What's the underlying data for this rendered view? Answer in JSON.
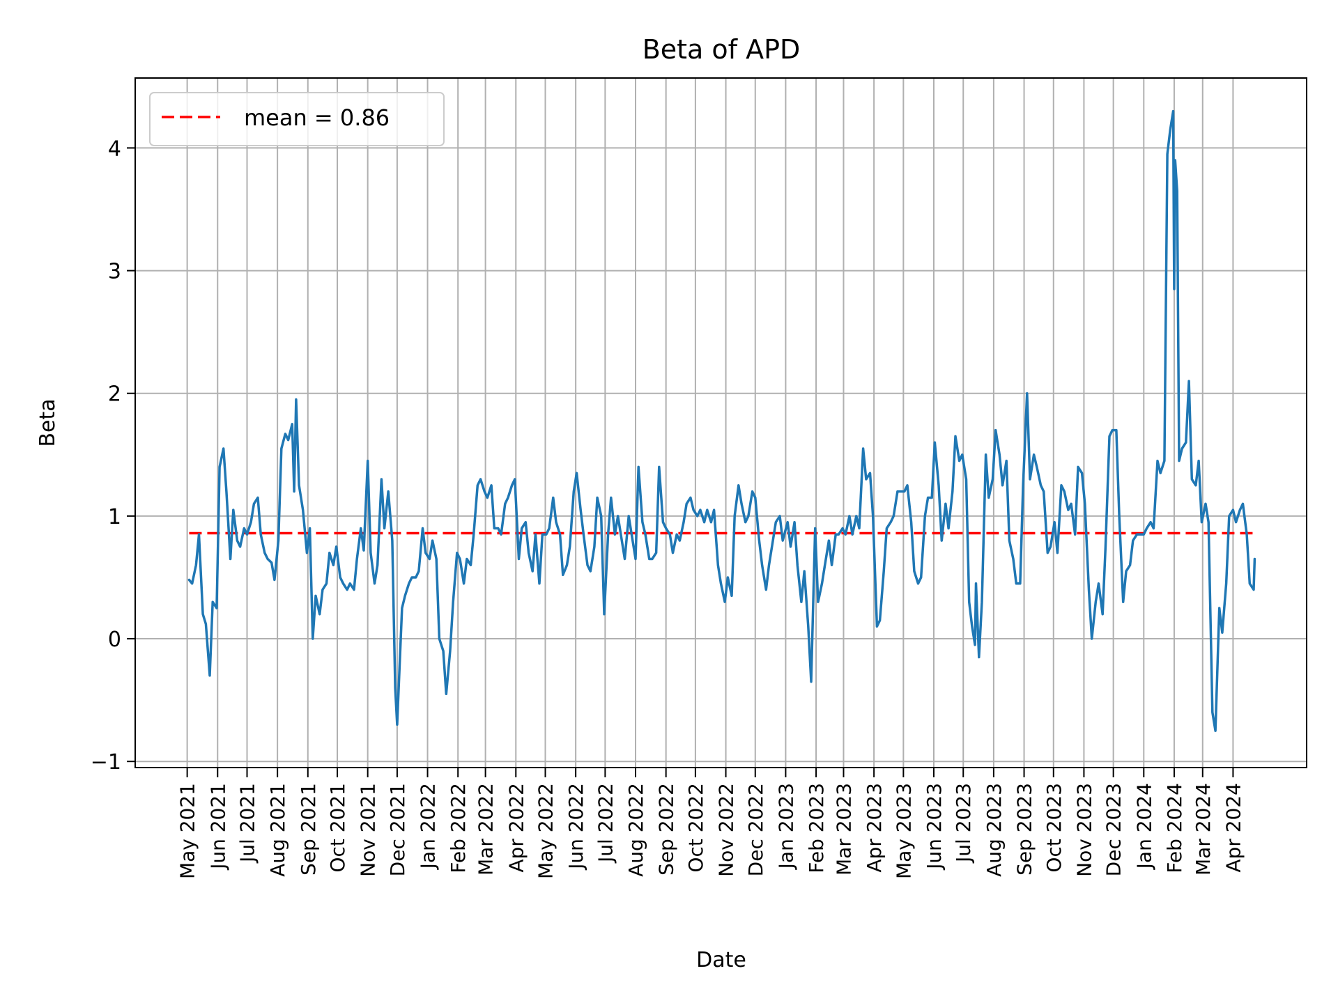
{
  "chart_data": {
    "type": "line",
    "title": "Beta of APD",
    "xlabel": "Date",
    "ylabel": "Beta",
    "xlim": [
      "2021-03-09",
      "2024-06-15"
    ],
    "ylim": [
      -1.05,
      4.57
    ],
    "grid": true,
    "legend_position": "top-left",
    "yticks": [
      -1,
      0,
      1,
      2,
      3,
      4
    ],
    "ytick_labels": [
      "−1",
      "0",
      "1",
      "2",
      "3",
      "4"
    ],
    "xticks": [
      "2021-05-01",
      "2021-06-01",
      "2021-07-01",
      "2021-08-01",
      "2021-09-01",
      "2021-10-01",
      "2021-11-01",
      "2021-12-01",
      "2022-01-01",
      "2022-02-01",
      "2022-03-01",
      "2022-04-01",
      "2022-05-01",
      "2022-06-01",
      "2022-07-01",
      "2022-08-01",
      "2022-09-01",
      "2022-10-01",
      "2022-11-01",
      "2022-12-01",
      "2023-01-01",
      "2023-02-01",
      "2023-03-01",
      "2023-04-01",
      "2023-05-01",
      "2023-06-01",
      "2023-07-01",
      "2023-08-01",
      "2023-09-01",
      "2023-10-01",
      "2023-11-01",
      "2023-12-01",
      "2024-01-01",
      "2024-02-01",
      "2024-03-01",
      "2024-04-01"
    ],
    "xtick_labels": [
      "May 2021",
      "Jun 2021",
      "Jul 2021",
      "Aug 2021",
      "Sep 2021",
      "Oct 2021",
      "Nov 2021",
      "Dec 2021",
      "Jan 2022",
      "Feb 2022",
      "Mar 2022",
      "Apr 2022",
      "May 2022",
      "Jun 2022",
      "Jul 2022",
      "Aug 2022",
      "Sep 2022",
      "Oct 2022",
      "Nov 2022",
      "Dec 2022",
      "Jan 2023",
      "Feb 2023",
      "Mar 2023",
      "Apr 2023",
      "May 2023",
      "Jun 2023",
      "Jul 2023",
      "Aug 2023",
      "Sep 2023",
      "Oct 2023",
      "Nov 2023",
      "Dec 2023",
      "Jan 2024",
      "Feb 2024",
      "Mar 2024",
      "Apr 2024"
    ],
    "colors": {
      "series": "#1f77b4",
      "mean": "#ff0000",
      "grid": "#b0b0b0"
    },
    "mean_line": {
      "label": "mean = 0.86",
      "value": 0.86,
      "style": "dashed"
    },
    "series": [
      {
        "x": [
          "2021-05-03",
          "2021-05-06",
          "2021-05-10",
          "2021-05-13",
          "2021-05-17",
          "2021-05-20",
          "2021-05-24",
          "2021-05-27",
          "2021-05-31",
          "2021-06-03",
          "2021-06-07",
          "2021-06-10",
          "2021-06-14",
          "2021-06-17",
          "2021-06-21",
          "2021-06-24",
          "2021-06-28",
          "2021-07-01",
          "2021-07-05",
          "2021-07-08",
          "2021-07-12",
          "2021-07-15",
          "2021-07-19",
          "2021-07-22",
          "2021-07-26",
          "2021-07-29",
          "2021-08-02",
          "2021-08-05",
          "2021-08-09",
          "2021-08-12",
          "2021-08-16",
          "2021-08-18",
          "2021-08-20",
          "2021-08-23",
          "2021-08-27",
          "2021-08-31",
          "2021-09-03",
          "2021-09-06",
          "2021-09-09",
          "2021-09-13",
          "2021-09-16",
          "2021-09-20",
          "2021-09-23",
          "2021-09-27",
          "2021-09-30",
          "2021-10-04",
          "2021-10-07",
          "2021-10-11",
          "2021-10-14",
          "2021-10-18",
          "2021-10-21",
          "2021-10-25",
          "2021-10-28",
          "2021-11-01",
          "2021-11-04",
          "2021-11-08",
          "2021-11-11",
          "2021-11-15",
          "2021-11-18",
          "2021-11-22",
          "2021-11-26",
          "2021-11-29",
          "2021-12-01",
          "2021-12-06",
          "2021-12-09",
          "2021-12-13",
          "2021-12-16",
          "2021-12-20",
          "2021-12-23",
          "2021-12-27",
          "2021-12-30",
          "2022-01-03",
          "2022-01-06",
          "2022-01-10",
          "2022-01-13",
          "2022-01-17",
          "2022-01-20",
          "2022-01-24",
          "2022-01-27",
          "2022-01-31",
          "2022-02-03",
          "2022-02-07",
          "2022-02-10",
          "2022-02-14",
          "2022-02-17",
          "2022-02-21",
          "2022-02-24",
          "2022-02-28",
          "2022-03-03",
          "2022-03-07",
          "2022-03-10",
          "2022-03-14",
          "2022-03-17",
          "2022-03-21",
          "2022-03-24",
          "2022-03-28",
          "2022-03-31",
          "2022-04-04",
          "2022-04-07",
          "2022-04-11",
          "2022-04-14",
          "2022-04-18",
          "2022-04-21",
          "2022-04-25",
          "2022-04-28",
          "2022-05-02",
          "2022-05-05",
          "2022-05-09",
          "2022-05-12",
          "2022-05-16",
          "2022-05-19",
          "2022-05-23",
          "2022-05-26",
          "2022-05-30",
          "2022-06-02",
          "2022-06-06",
          "2022-06-09",
          "2022-06-13",
          "2022-06-16",
          "2022-06-20",
          "2022-06-23",
          "2022-06-27",
          "2022-06-30",
          "2022-07-04",
          "2022-07-07",
          "2022-07-11",
          "2022-07-14",
          "2022-07-18",
          "2022-07-21",
          "2022-07-25",
          "2022-07-28",
          "2022-08-01",
          "2022-08-04",
          "2022-08-08",
          "2022-08-11",
          "2022-08-15",
          "2022-08-18",
          "2022-08-22",
          "2022-08-25",
          "2022-08-29",
          "2022-09-01",
          "2022-09-05",
          "2022-09-08",
          "2022-09-12",
          "2022-09-15",
          "2022-09-19",
          "2022-09-22",
          "2022-09-26",
          "2022-09-29",
          "2022-10-03",
          "2022-10-06",
          "2022-10-10",
          "2022-10-13",
          "2022-10-17",
          "2022-10-20",
          "2022-10-24",
          "2022-10-27",
          "2022-10-31",
          "2022-11-03",
          "2022-11-07",
          "2022-11-10",
          "2022-11-14",
          "2022-11-17",
          "2022-11-21",
          "2022-11-24",
          "2022-11-28",
          "2022-12-01",
          "2022-12-05",
          "2022-12-08",
          "2022-12-12",
          "2022-12-15",
          "2022-12-19",
          "2022-12-22",
          "2022-12-26",
          "2022-12-29",
          "2023-01-03",
          "2023-01-06",
          "2023-01-10",
          "2023-01-13",
          "2023-01-17",
          "2023-01-20",
          "2023-01-24",
          "2023-01-27",
          "2023-01-31",
          "2023-02-03",
          "2023-02-07",
          "2023-02-10",
          "2023-02-14",
          "2023-02-17",
          "2023-02-21",
          "2023-02-24",
          "2023-02-28",
          "2023-03-03",
          "2023-03-07",
          "2023-03-10",
          "2023-03-14",
          "2023-03-17",
          "2023-03-21",
          "2023-03-24",
          "2023-03-28",
          "2023-03-31",
          "2023-04-04",
          "2023-04-07",
          "2023-04-11",
          "2023-04-14",
          "2023-04-18",
          "2023-04-21",
          "2023-04-25",
          "2023-04-28",
          "2023-05-02",
          "2023-05-05",
          "2023-05-09",
          "2023-05-12",
          "2023-05-16",
          "2023-05-19",
          "2023-05-23",
          "2023-05-26",
          "2023-05-30",
          "2023-06-02",
          "2023-06-06",
          "2023-06-09",
          "2023-06-13",
          "2023-06-16",
          "2023-06-20",
          "2023-06-23",
          "2023-06-27",
          "2023-06-30",
          "2023-07-04",
          "2023-07-07",
          "2023-07-10",
          "2023-07-13",
          "2023-07-14",
          "2023-07-17",
          "2023-07-20",
          "2023-07-24",
          "2023-07-27",
          "2023-07-31",
          "2023-08-03",
          "2023-08-07",
          "2023-08-10",
          "2023-08-14",
          "2023-08-17",
          "2023-08-21",
          "2023-08-24",
          "2023-08-28",
          "2023-08-31",
          "2023-09-04",
          "2023-09-07",
          "2023-09-11",
          "2023-09-14",
          "2023-09-18",
          "2023-09-21",
          "2023-09-25",
          "2023-09-28",
          "2023-10-02",
          "2023-10-05",
          "2023-10-09",
          "2023-10-12",
          "2023-10-16",
          "2023-10-19",
          "2023-10-23",
          "2023-10-26",
          "2023-10-30",
          "2023-11-02",
          "2023-11-06",
          "2023-11-09",
          "2023-11-13",
          "2023-11-16",
          "2023-11-20",
          "2023-11-23",
          "2023-11-27",
          "2023-11-30",
          "2023-12-04",
          "2023-12-07",
          "2023-12-11",
          "2023-12-14",
          "2023-12-18",
          "2023-12-21",
          "2023-12-25",
          "2023-12-28",
          "2024-01-01",
          "2024-01-04",
          "2024-01-08",
          "2024-01-11",
          "2024-01-15",
          "2024-01-18",
          "2024-01-22",
          "2024-01-25",
          "2024-01-28",
          "2024-01-31",
          "2024-02-01",
          "2024-02-02",
          "2024-02-04",
          "2024-02-06",
          "2024-02-09",
          "2024-02-13",
          "2024-02-16",
          "2024-02-19",
          "2024-02-23",
          "2024-02-26",
          "2024-02-29",
          "2024-03-04",
          "2024-03-07",
          "2024-03-11",
          "2024-03-14",
          "2024-03-18",
          "2024-03-21",
          "2024-03-25",
          "2024-03-28",
          "2024-04-01",
          "2024-04-04",
          "2024-04-08",
          "2024-04-11",
          "2024-04-15",
          "2024-04-18",
          "2024-04-22",
          "2024-04-23"
        ],
        "y": [
          0.48,
          0.45,
          0.6,
          0.85,
          0.2,
          0.12,
          -0.3,
          0.3,
          0.25,
          1.4,
          1.55,
          1.2,
          0.65,
          1.05,
          0.8,
          0.75,
          0.9,
          0.85,
          0.95,
          1.1,
          1.15,
          0.85,
          0.7,
          0.65,
          0.62,
          0.48,
          0.8,
          1.55,
          1.67,
          1.62,
          1.75,
          1.2,
          1.95,
          1.25,
          1.05,
          0.7,
          0.9,
          0.0,
          0.35,
          0.2,
          0.4,
          0.45,
          0.7,
          0.6,
          0.75,
          0.5,
          0.45,
          0.4,
          0.45,
          0.4,
          0.65,
          0.9,
          0.72,
          1.45,
          0.7,
          0.45,
          0.6,
          1.3,
          0.9,
          1.2,
          0.8,
          -0.4,
          -0.7,
          0.25,
          0.35,
          0.45,
          0.5,
          0.5,
          0.55,
          0.9,
          0.7,
          0.65,
          0.8,
          0.65,
          0.0,
          -0.1,
          -0.45,
          -0.1,
          0.3,
          0.7,
          0.65,
          0.45,
          0.65,
          0.6,
          0.85,
          1.25,
          1.3,
          1.2,
          1.15,
          1.25,
          0.9,
          0.9,
          0.85,
          1.1,
          1.15,
          1.25,
          1.3,
          0.65,
          0.9,
          0.95,
          0.7,
          0.55,
          0.85,
          0.45,
          0.85,
          0.85,
          0.9,
          1.15,
          0.95,
          0.85,
          0.52,
          0.6,
          0.75,
          1.2,
          1.35,
          1.05,
          0.85,
          0.6,
          0.55,
          0.75,
          1.15,
          1.0,
          0.2,
          0.85,
          1.15,
          0.85,
          1.0,
          0.8,
          0.65,
          1.0,
          0.85,
          0.65,
          1.4,
          0.95,
          0.85,
          0.65,
          0.65,
          0.7,
          1.4,
          0.95,
          0.9,
          0.85,
          0.7,
          0.85,
          0.8,
          0.95,
          1.1,
          1.15,
          1.05,
          1.0,
          1.05,
          0.95,
          1.05,
          0.95,
          1.05,
          0.6,
          0.45,
          0.3,
          0.5,
          0.35,
          1.0,
          1.25,
          1.1,
          0.95,
          1.0,
          1.2,
          1.15,
          0.8,
          0.6,
          0.4,
          0.6,
          0.8,
          0.95,
          1.0,
          0.8,
          0.95,
          0.75,
          0.95,
          0.6,
          0.3,
          0.55,
          0.1,
          -0.35,
          0.9,
          0.3,
          0.45,
          0.6,
          0.8,
          0.6,
          0.85,
          0.85,
          0.9,
          0.85,
          1.0,
          0.85,
          1.0,
          0.9,
          1.55,
          1.3,
          1.35,
          1.0,
          0.1,
          0.15,
          0.55,
          0.9,
          0.95,
          1.0,
          1.2,
          1.2,
          1.2,
          1.25,
          0.95,
          0.55,
          0.45,
          0.5,
          1.0,
          1.15,
          1.15,
          1.6,
          1.25,
          0.8,
          1.1,
          0.9,
          1.2,
          1.65,
          1.45,
          1.5,
          1.3,
          0.3,
          0.1,
          -0.05,
          0.45,
          -0.15,
          0.3,
          1.5,
          1.15,
          1.3,
          1.7,
          1.5,
          1.25,
          1.45,
          0.8,
          0.65,
          0.45,
          0.45,
          1.25,
          2.0,
          1.3,
          1.5,
          1.4,
          1.25,
          1.2,
          0.7,
          0.75,
          0.95,
          0.7,
          1.25,
          1.2,
          1.05,
          1.1,
          0.85,
          1.4,
          1.35,
          1.1,
          0.4,
          0.0,
          0.3,
          0.45,
          0.2,
          0.75,
          1.65,
          1.7,
          1.7,
          1.0,
          0.3,
          0.55,
          0.6,
          0.8,
          0.85,
          0.85,
          0.85,
          0.9,
          0.95,
          0.9,
          1.45,
          1.35,
          1.45,
          3.95,
          4.15,
          4.3,
          2.85,
          3.9,
          3.65,
          1.45,
          1.55,
          1.6,
          2.1,
          1.3,
          1.25,
          1.45,
          0.95,
          1.1,
          0.95,
          -0.6,
          -0.75,
          0.25,
          0.05,
          0.45,
          1.0,
          1.05,
          0.95,
          1.05,
          1.1,
          0.85,
          0.45,
          0.4,
          0.65
        ]
      }
    ]
  }
}
